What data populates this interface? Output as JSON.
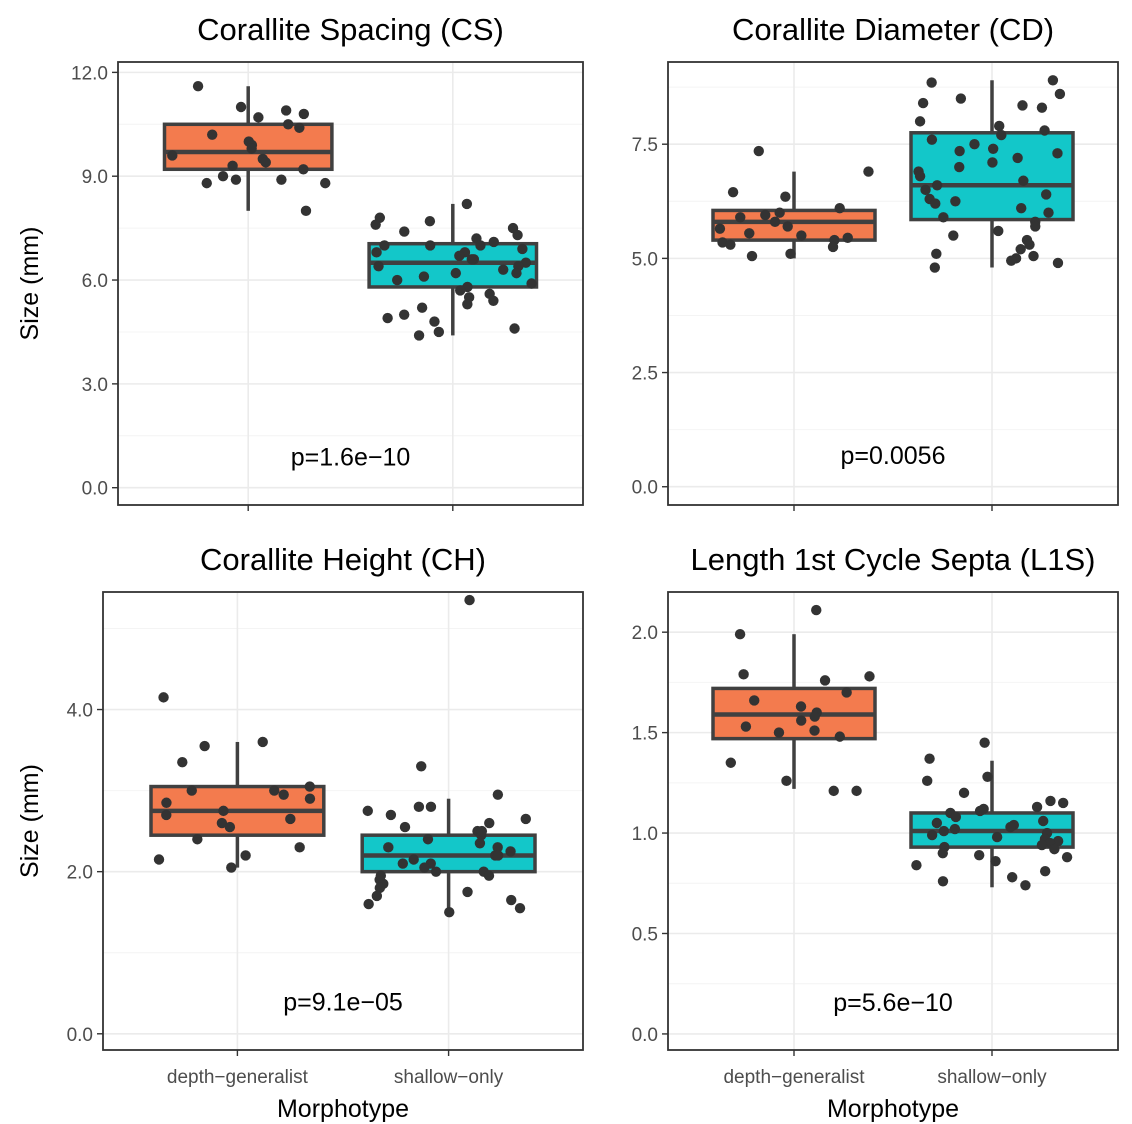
{
  "colors": {
    "depth_generalist": "#F37B4E",
    "shallow_only": "#13C7C9",
    "outline": "#404040",
    "points": "#333333",
    "grid_major": "#EBEBEB",
    "grid_minor": "#F4F4F4",
    "panel_border": "#333333"
  },
  "chart_data": [
    {
      "type": "box",
      "title": "Corallite Spacing (CS)",
      "ylabel": "Size (mm)",
      "xlabel": "",
      "categories": [
        "depth−generalist",
        "shallow−only"
      ],
      "show_x_tick_labels": false,
      "ylim": [
        -0.5,
        12.3
      ],
      "y_ticks": [
        0,
        3,
        6,
        9,
        12
      ],
      "y_tick_labels": [
        "0.0",
        "3.0",
        "6.0",
        "9.0",
        "12.0"
      ],
      "p_label": "p=1.6e−10",
      "p_label_y": 0.9,
      "grid": true,
      "boxes": [
        {
          "q1": 9.2,
          "median": 9.7,
          "q3": 10.5,
          "whisker_low": 8.0,
          "whisker_high": 11.6
        },
        {
          "q1": 5.8,
          "median": 6.5,
          "q3": 7.05,
          "whisker_low": 4.4,
          "whisker_high": 8.2
        }
      ],
      "points": [
        [
          11.6,
          10.9,
          10.7,
          11.0,
          10.2,
          10.4,
          10.5,
          10.0,
          9.9,
          9.8,
          9.6,
          9.5,
          9.4,
          9.3,
          9.2,
          9.0,
          8.9,
          8.8,
          8.8,
          8.9,
          8.0,
          10.8
        ],
        [
          8.2,
          7.8,
          7.7,
          7.5,
          7.4,
          7.3,
          7.2,
          7.1,
          7.0,
          7.0,
          6.9,
          6.8,
          6.7,
          6.6,
          6.6,
          6.5,
          6.4,
          6.4,
          6.3,
          6.2,
          6.1,
          6.0,
          5.9,
          5.8,
          5.6,
          5.5,
          5.4,
          5.3,
          5.2,
          5.0,
          4.9,
          4.8,
          4.6,
          4.5,
          4.4,
          7.6,
          6.8,
          5.7,
          6.2,
          7.0
        ]
      ]
    },
    {
      "type": "box",
      "title": "Corallite Diameter (CD)",
      "ylabel": "",
      "xlabel": "",
      "categories": [
        "depth−generalist",
        "shallow−only"
      ],
      "show_x_tick_labels": false,
      "ylim": [
        -0.4,
        9.3
      ],
      "y_ticks": [
        0,
        2.5,
        5,
        7.5
      ],
      "y_tick_labels": [
        "0.0",
        "2.5",
        "5.0",
        "7.5"
      ],
      "p_label": "p=0.0056",
      "p_label_y": 0.7,
      "grid": true,
      "boxes": [
        {
          "q1": 5.4,
          "median": 5.8,
          "q3": 6.05,
          "whisker_low": 5.0,
          "whisker_high": 6.9
        },
        {
          "q1": 5.85,
          "median": 6.6,
          "q3": 7.75,
          "whisker_low": 4.8,
          "whisker_high": 8.9
        }
      ],
      "points": [
        [
          7.35,
          6.9,
          6.45,
          6.35,
          6.1,
          6.0,
          5.95,
          5.9,
          5.8,
          5.7,
          5.65,
          5.55,
          5.5,
          5.45,
          5.4,
          5.35,
          5.3,
          5.25,
          5.1,
          5.05
        ],
        [
          8.9,
          8.85,
          8.6,
          8.5,
          8.4,
          8.35,
          8.3,
          8.0,
          7.9,
          7.8,
          7.7,
          7.6,
          7.5,
          7.4,
          7.3,
          7.2,
          7.1,
          7.0,
          6.9,
          6.8,
          6.7,
          6.6,
          6.5,
          6.4,
          6.3,
          6.2,
          6.1,
          6.0,
          5.9,
          5.8,
          5.7,
          5.6,
          5.5,
          5.4,
          5.3,
          5.2,
          5.1,
          5.0,
          4.95,
          4.8,
          4.9,
          5.05,
          7.35,
          6.25
        ]
      ]
    },
    {
      "type": "box",
      "title": "Corallite Height (CH)",
      "ylabel": "Size (mm)",
      "xlabel": "Morphotype",
      "categories": [
        "depth−generalist",
        "shallow−only"
      ],
      "show_x_tick_labels": true,
      "ylim": [
        -0.2,
        5.45
      ],
      "y_ticks": [
        0,
        2,
        4
      ],
      "y_tick_labels": [
        "0.0",
        "2.0",
        "4.0"
      ],
      "p_label": "p=9.1e−05",
      "p_label_y": 0.4,
      "grid": true,
      "boxes": [
        {
          "q1": 2.45,
          "median": 2.75,
          "q3": 3.05,
          "whisker_low": 2.05,
          "whisker_high": 3.6
        },
        {
          "q1": 2.0,
          "median": 2.2,
          "q3": 2.45,
          "whisker_low": 1.5,
          "whisker_high": 2.9
        }
      ],
      "points": [
        [
          4.15,
          3.6,
          3.55,
          3.35,
          3.05,
          3.0,
          3.0,
          2.95,
          2.9,
          2.85,
          2.75,
          2.7,
          2.65,
          2.6,
          2.55,
          2.4,
          2.3,
          2.2,
          2.15,
          2.05
        ],
        [
          5.35,
          3.3,
          2.95,
          2.8,
          2.8,
          2.75,
          2.7,
          2.65,
          2.6,
          2.55,
          2.5,
          2.45,
          2.4,
          2.35,
          2.3,
          2.25,
          2.2,
          2.2,
          2.15,
          2.1,
          2.05,
          2.0,
          2.0,
          1.95,
          1.9,
          1.85,
          1.8,
          1.75,
          1.7,
          1.65,
          1.6,
          1.55,
          1.5,
          2.3,
          2.5,
          2.1,
          1.95
        ]
      ]
    },
    {
      "type": "box",
      "title": "Length 1st Cycle Septa (L1S)",
      "ylabel": "",
      "xlabel": "Morphotype",
      "categories": [
        "depth−generalist",
        "shallow−only"
      ],
      "show_x_tick_labels": true,
      "ylim": [
        -0.08,
        2.2
      ],
      "y_ticks": [
        0,
        0.5,
        1,
        1.5,
        2
      ],
      "y_tick_labels": [
        "0.0",
        "0.5",
        "1.0",
        "1.5",
        "2.0"
      ],
      "p_label": "p=5.6e−10",
      "p_label_y": 0.16,
      "grid": true,
      "boxes": [
        {
          "q1": 1.47,
          "median": 1.59,
          "q3": 1.72,
          "whisker_low": 1.22,
          "whisker_high": 1.99
        },
        {
          "q1": 0.93,
          "median": 1.01,
          "q3": 1.1,
          "whisker_low": 0.73,
          "whisker_high": 1.36
        },
        {
          "skip": true
        }
      ],
      "points": [
        [
          2.11,
          1.99,
          1.79,
          1.78,
          1.76,
          1.7,
          1.66,
          1.63,
          1.6,
          1.58,
          1.56,
          1.53,
          1.51,
          1.5,
          1.48,
          1.35,
          1.26,
          1.21,
          1.21
        ],
        [
          1.45,
          1.37,
          1.28,
          1.26,
          1.2,
          1.16,
          1.15,
          1.13,
          1.11,
          1.1,
          1.08,
          1.06,
          1.05,
          1.04,
          1.03,
          1.02,
          1.01,
          1.0,
          0.99,
          0.98,
          0.97,
          0.96,
          0.95,
          0.94,
          0.93,
          0.92,
          0.9,
          0.88,
          0.86,
          0.84,
          0.81,
          0.78,
          0.76,
          0.74,
          1.12,
          0.89
        ]
      ]
    }
  ]
}
